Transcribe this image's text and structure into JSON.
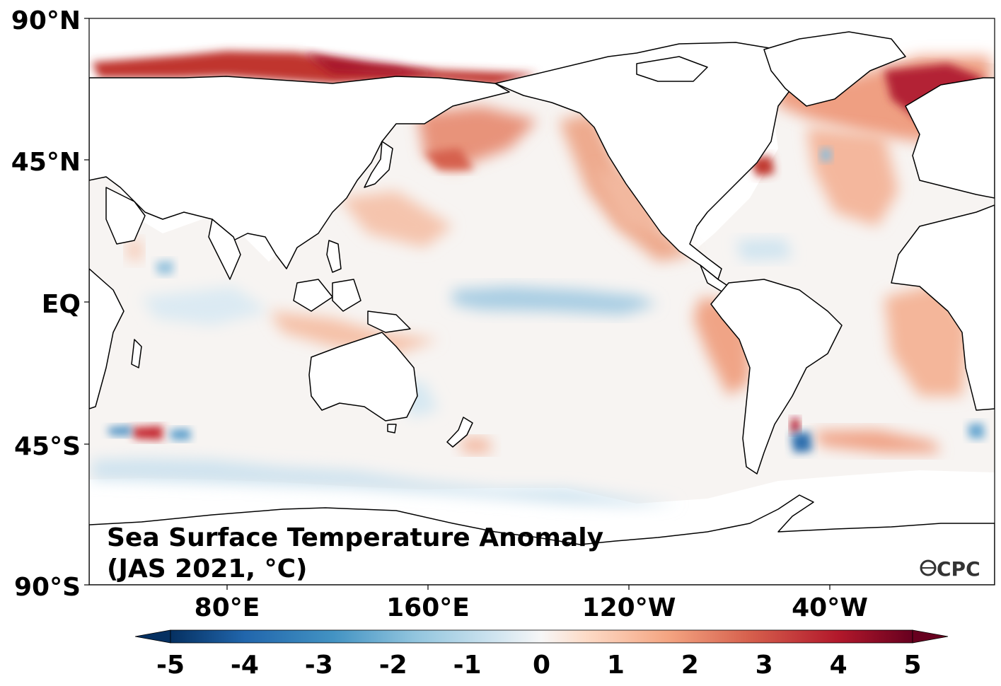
{
  "map": {
    "title_line1": "Sea Surface Temperature Anomaly",
    "title_line2": "(JAS 2021, °C)",
    "logo": "CPC",
    "lat_labels": [
      "90°N",
      "45°N",
      "EQ",
      "45°S",
      "90°S"
    ],
    "lon_labels": [
      "80°E",
      "160°E",
      "120°W",
      "40°W"
    ],
    "central_longitude_deg_east": 180
  },
  "colorbar": {
    "ticks": [
      "-5",
      "-4",
      "-3",
      "-2",
      "-1",
      "0",
      "1",
      "2",
      "3",
      "4",
      "5"
    ],
    "min": -5,
    "max": 5,
    "extend": "both",
    "colormap": [
      "#053061",
      "#2166ac",
      "#4393c3",
      "#92c5de",
      "#d1e5f0",
      "#f7f7f7",
      "#fddbc7",
      "#f4a582",
      "#d6604d",
      "#b2182b",
      "#67001f"
    ]
  },
  "colors": {
    "land": "#ffffff",
    "coast": "#000000",
    "ocean_neutral": "#f7f4f2"
  }
}
